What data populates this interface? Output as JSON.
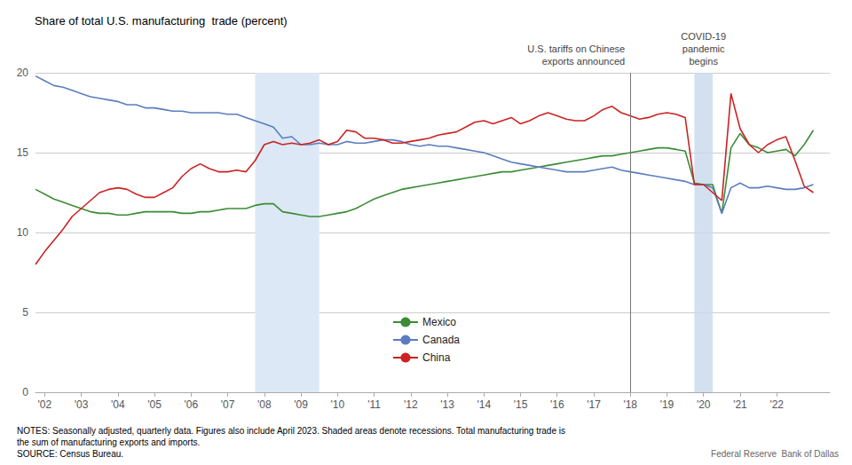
{
  "chart_data": {
    "type": "line",
    "title": "Share of total U.S. manufacturing  trade (percent)",
    "x": [
      2001.75,
      2002,
      2002.25,
      2002.5,
      2002.75,
      2003,
      2003.25,
      2003.5,
      2003.75,
      2004,
      2004.25,
      2004.5,
      2004.75,
      2005,
      2005.25,
      2005.5,
      2005.75,
      2006,
      2006.25,
      2006.5,
      2006.75,
      2007,
      2007.25,
      2007.5,
      2007.75,
      2008,
      2008.25,
      2008.5,
      2008.75,
      2009,
      2009.25,
      2009.5,
      2009.75,
      2010,
      2010.25,
      2010.5,
      2010.75,
      2011,
      2011.25,
      2011.5,
      2011.75,
      2012,
      2012.25,
      2012.5,
      2012.75,
      2013,
      2013.25,
      2013.5,
      2013.75,
      2014,
      2014.25,
      2014.5,
      2014.75,
      2015,
      2015.25,
      2015.5,
      2015.75,
      2016,
      2016.25,
      2016.5,
      2016.75,
      2017,
      2017.25,
      2017.5,
      2017.75,
      2018,
      2018.25,
      2018.5,
      2018.75,
      2019,
      2019.25,
      2019.5,
      2019.75,
      2020,
      2020.25,
      2020.5,
      2020.75,
      2021,
      2021.25,
      2021.5,
      2021.75,
      2022,
      2022.25,
      2022.5,
      2022.75,
      2023
    ],
    "xlim": [
      2001.75,
      2023.45
    ],
    "xticks": [
      {
        "value": 2002,
        "label": "'02"
      },
      {
        "value": 2003,
        "label": "'03"
      },
      {
        "value": 2004,
        "label": "'04"
      },
      {
        "value": 2005,
        "label": "'05"
      },
      {
        "value": 2006,
        "label": "'06"
      },
      {
        "value": 2007,
        "label": "'07"
      },
      {
        "value": 2008,
        "label": "'08"
      },
      {
        "value": 2009,
        "label": "'09"
      },
      {
        "value": 2010,
        "label": "'10"
      },
      {
        "value": 2011,
        "label": "'11"
      },
      {
        "value": 2012,
        "label": "'12"
      },
      {
        "value": 2013,
        "label": "'13"
      },
      {
        "value": 2014,
        "label": "'14"
      },
      {
        "value": 2015,
        "label": "'15"
      },
      {
        "value": 2016,
        "label": "'16"
      },
      {
        "value": 2017,
        "label": "'17"
      },
      {
        "value": 2018,
        "label": "'18"
      },
      {
        "value": 2019,
        "label": "'19"
      },
      {
        "value": 2020,
        "label": "'20"
      },
      {
        "value": 2021,
        "label": "'21"
      },
      {
        "value": 2022,
        "label": "'22"
      }
    ],
    "ylim": [
      0,
      20
    ],
    "yticks": [
      0,
      5,
      10,
      15,
      20
    ],
    "grid": true,
    "legend": "lower center",
    "series": [
      {
        "name": "Mexico",
        "color": "#3a8c35",
        "values": [
          12.7,
          12.4,
          12.1,
          11.9,
          11.7,
          11.5,
          11.3,
          11.2,
          11.2,
          11.1,
          11.1,
          11.2,
          11.3,
          11.3,
          11.3,
          11.3,
          11.2,
          11.2,
          11.3,
          11.3,
          11.4,
          11.5,
          11.5,
          11.5,
          11.7,
          11.8,
          11.8,
          11.3,
          11.2,
          11.1,
          11.0,
          11.0,
          11.1,
          11.2,
          11.3,
          11.5,
          11.8,
          12.1,
          12.3,
          12.5,
          12.7,
          12.8,
          12.9,
          13.0,
          13.1,
          13.2,
          13.3,
          13.4,
          13.5,
          13.6,
          13.7,
          13.8,
          13.8,
          13.9,
          14.0,
          14.1,
          14.2,
          14.3,
          14.4,
          14.5,
          14.6,
          14.7,
          14.8,
          14.8,
          14.9,
          15.0,
          15.1,
          15.2,
          15.3,
          15.3,
          15.2,
          15.1,
          13.1,
          13.0,
          13.0,
          11.2,
          15.3,
          16.2,
          15.5,
          15.3,
          15.0,
          15.1,
          15.2,
          14.8,
          15.5,
          16.4
        ]
      },
      {
        "name": "Canada",
        "color": "#5b7dbf",
        "values": [
          19.8,
          19.5,
          19.2,
          19.1,
          18.9,
          18.7,
          18.5,
          18.4,
          18.3,
          18.2,
          18.0,
          18.0,
          17.8,
          17.8,
          17.7,
          17.6,
          17.6,
          17.5,
          17.5,
          17.5,
          17.5,
          17.4,
          17.4,
          17.2,
          17.0,
          16.8,
          16.6,
          15.9,
          16.0,
          15.5,
          15.5,
          15.6,
          15.5,
          15.5,
          15.7,
          15.6,
          15.6,
          15.7,
          15.8,
          15.8,
          15.7,
          15.5,
          15.4,
          15.5,
          15.4,
          15.4,
          15.3,
          15.2,
          15.1,
          15.0,
          14.8,
          14.6,
          14.4,
          14.3,
          14.2,
          14.1,
          14.0,
          13.9,
          13.8,
          13.8,
          13.8,
          13.9,
          14.0,
          14.1,
          13.9,
          13.8,
          13.7,
          13.6,
          13.5,
          13.4,
          13.3,
          13.2,
          13.0,
          13.0,
          12.8,
          11.2,
          12.8,
          13.1,
          12.8,
          12.8,
          12.9,
          12.8,
          12.7,
          12.7,
          12.8,
          13.0
        ]
      },
      {
        "name": "China",
        "color": "#cc2222",
        "values": [
          8.0,
          8.8,
          9.5,
          10.2,
          11.0,
          11.5,
          12.0,
          12.5,
          12.7,
          12.8,
          12.7,
          12.4,
          12.2,
          12.2,
          12.5,
          12.8,
          13.5,
          14.0,
          14.3,
          14.0,
          13.8,
          13.8,
          13.9,
          13.8,
          14.5,
          15.5,
          15.7,
          15.5,
          15.6,
          15.5,
          15.6,
          15.8,
          15.5,
          15.7,
          16.4,
          16.3,
          15.9,
          15.9,
          15.8,
          15.6,
          15.6,
          15.7,
          15.8,
          15.9,
          16.1,
          16.2,
          16.3,
          16.6,
          16.9,
          17.0,
          16.8,
          17.0,
          17.2,
          16.8,
          17.0,
          17.3,
          17.5,
          17.3,
          17.1,
          17.0,
          17.0,
          17.3,
          17.7,
          17.9,
          17.5,
          17.3,
          17.1,
          17.2,
          17.4,
          17.5,
          17.4,
          17.2,
          13.0,
          13.0,
          12.5,
          12.0,
          18.7,
          16.5,
          15.5,
          15.0,
          15.5,
          15.8,
          16.0,
          14.5,
          12.9,
          12.5
        ]
      }
    ],
    "shaded_regions": [
      {
        "start": 2007.75,
        "end": 2009.5,
        "color": "#dce8f5"
      },
      {
        "start": 2019.75,
        "end": 2020.25,
        "color": "#c8d8ec"
      }
    ],
    "vlines": [
      {
        "x": 2018.0,
        "color": "#777777"
      }
    ],
    "annotations": [
      {
        "text": "U.S. tariffs on Chinese\nexports announced",
        "x": 2018.0
      },
      {
        "text": "COVID-19\npandemic\nbegins",
        "x": 2020.0
      }
    ],
    "notes": "NOTES: Seasonally adjusted, quarterly data. Figures also include April 2023. Shaded areas denote recessions. Total manufacturing trade is\nthe sum of manufacturing exports and imports.\nSOURCE: Census Bureau.",
    "source": "Federal Reserve  Bank of Dallas"
  }
}
